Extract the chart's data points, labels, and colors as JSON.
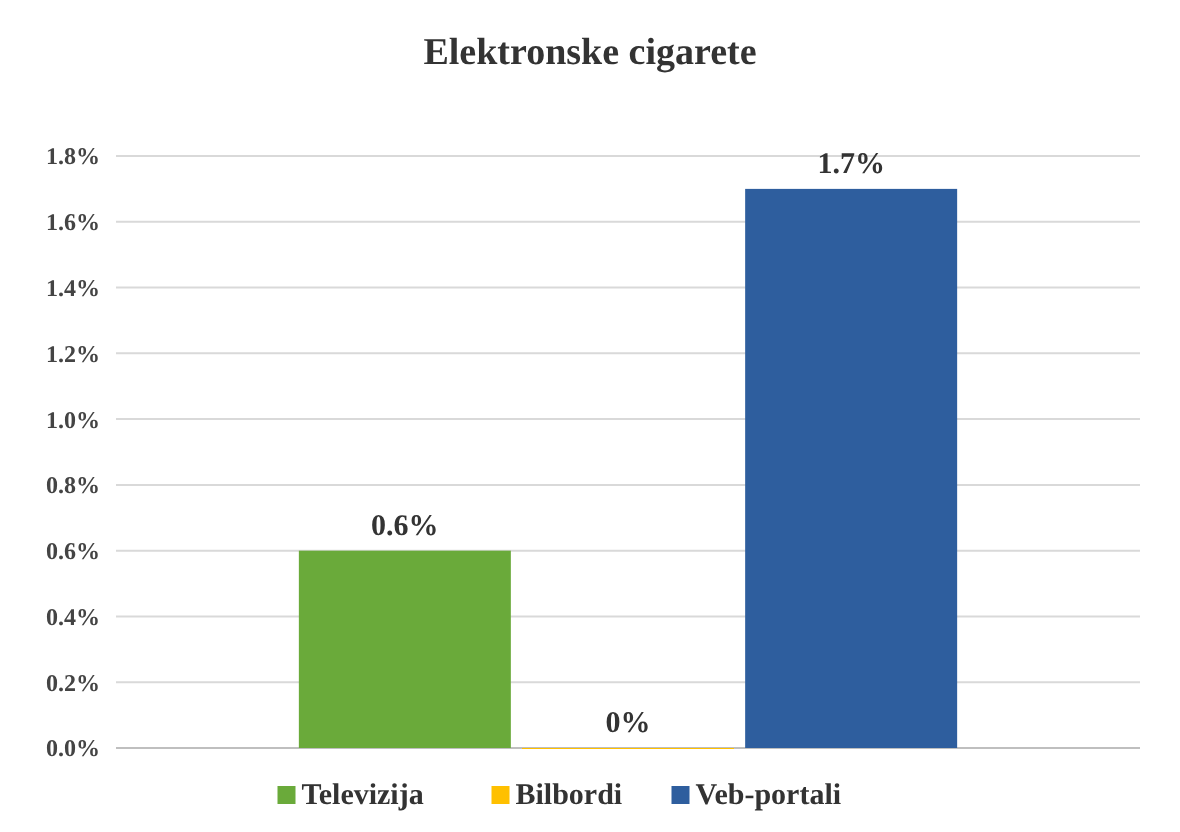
{
  "chart_data": {
    "type": "bar",
    "title": "Elektronske cigarete",
    "categories": [
      null
    ],
    "series": [
      {
        "name": "Televizija",
        "color": "#6aaa3a",
        "values": [
          0.6
        ],
        "value_labels": [
          "0.6%"
        ]
      },
      {
        "name": "Bilbordi",
        "color": "#ffc000",
        "values": [
          0
        ],
        "value_labels": [
          "0%"
        ]
      },
      {
        "name": "Veb-portali",
        "color": "#2e5e9e",
        "values": [
          1.7
        ],
        "value_labels": [
          "1.7%"
        ]
      }
    ],
    "ylim": [
      0,
      1.8
    ],
    "yticks": [
      {
        "value": 0,
        "label": "0.0%"
      },
      {
        "value": 0.2,
        "label": "0.2%"
      },
      {
        "value": 0.4,
        "label": "0.4%"
      },
      {
        "value": 0.6,
        "label": "0.6%"
      },
      {
        "value": 0.8,
        "label": "0.8%"
      },
      {
        "value": 1.0,
        "label": "1.0%"
      },
      {
        "value": 1.2,
        "label": "1.2%"
      },
      {
        "value": 1.4,
        "label": "1.4%"
      },
      {
        "value": 1.6,
        "label": "1.6%"
      },
      {
        "value": 1.8,
        "label": "1.8%"
      }
    ],
    "grid": "y",
    "legend": "bottom"
  }
}
